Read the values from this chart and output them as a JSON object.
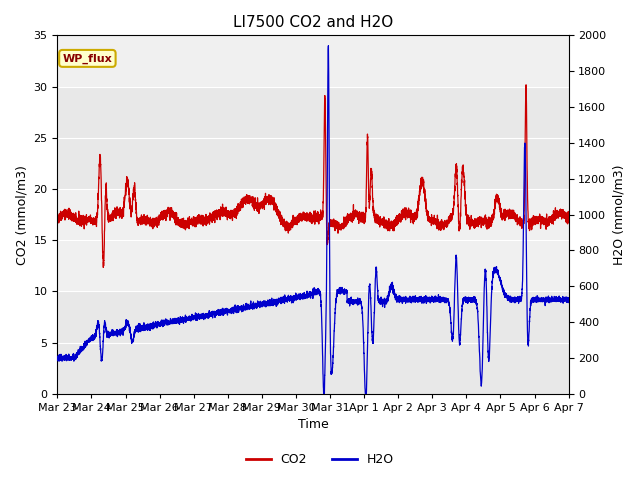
{
  "title": "LI7500 CO2 and H2O",
  "xlabel": "Time",
  "ylabel_left": "CO2 (mmol/m3)",
  "ylabel_right": "H2O (mmol/m3)",
  "annotation": "WP_flux",
  "ylim_left": [
    0,
    35
  ],
  "ylim_right": [
    0,
    2000
  ],
  "yticks_left": [
    0,
    5,
    10,
    15,
    20,
    25,
    30,
    35
  ],
  "yticks_right": [
    0,
    200,
    400,
    600,
    800,
    1000,
    1200,
    1400,
    1600,
    1800,
    2000
  ],
  "xtick_labels": [
    "Mar 23",
    "Mar 24",
    "Mar 25",
    "Mar 26",
    "Mar 27",
    "Mar 28",
    "Mar 29",
    "Mar 30",
    "Mar 31",
    "Apr 1",
    "Apr 2",
    "Apr 3",
    "Apr 4",
    "Apr 5",
    "Apr 6",
    "Apr 7"
  ],
  "co2_color": "#cc0000",
  "h2o_color": "#0000cc",
  "bg_color": "#ffffff",
  "plot_bg_color": "#e8e8e8",
  "band_light": "#f0f0f0",
  "band_dark": "#d8d8d8",
  "grid_color": "#ffffff",
  "annotation_bg": "#ffffcc",
  "annotation_border": "#ccaa00",
  "annotation_text_color": "#880000",
  "title_fontsize": 11,
  "label_fontsize": 9,
  "tick_fontsize": 8
}
